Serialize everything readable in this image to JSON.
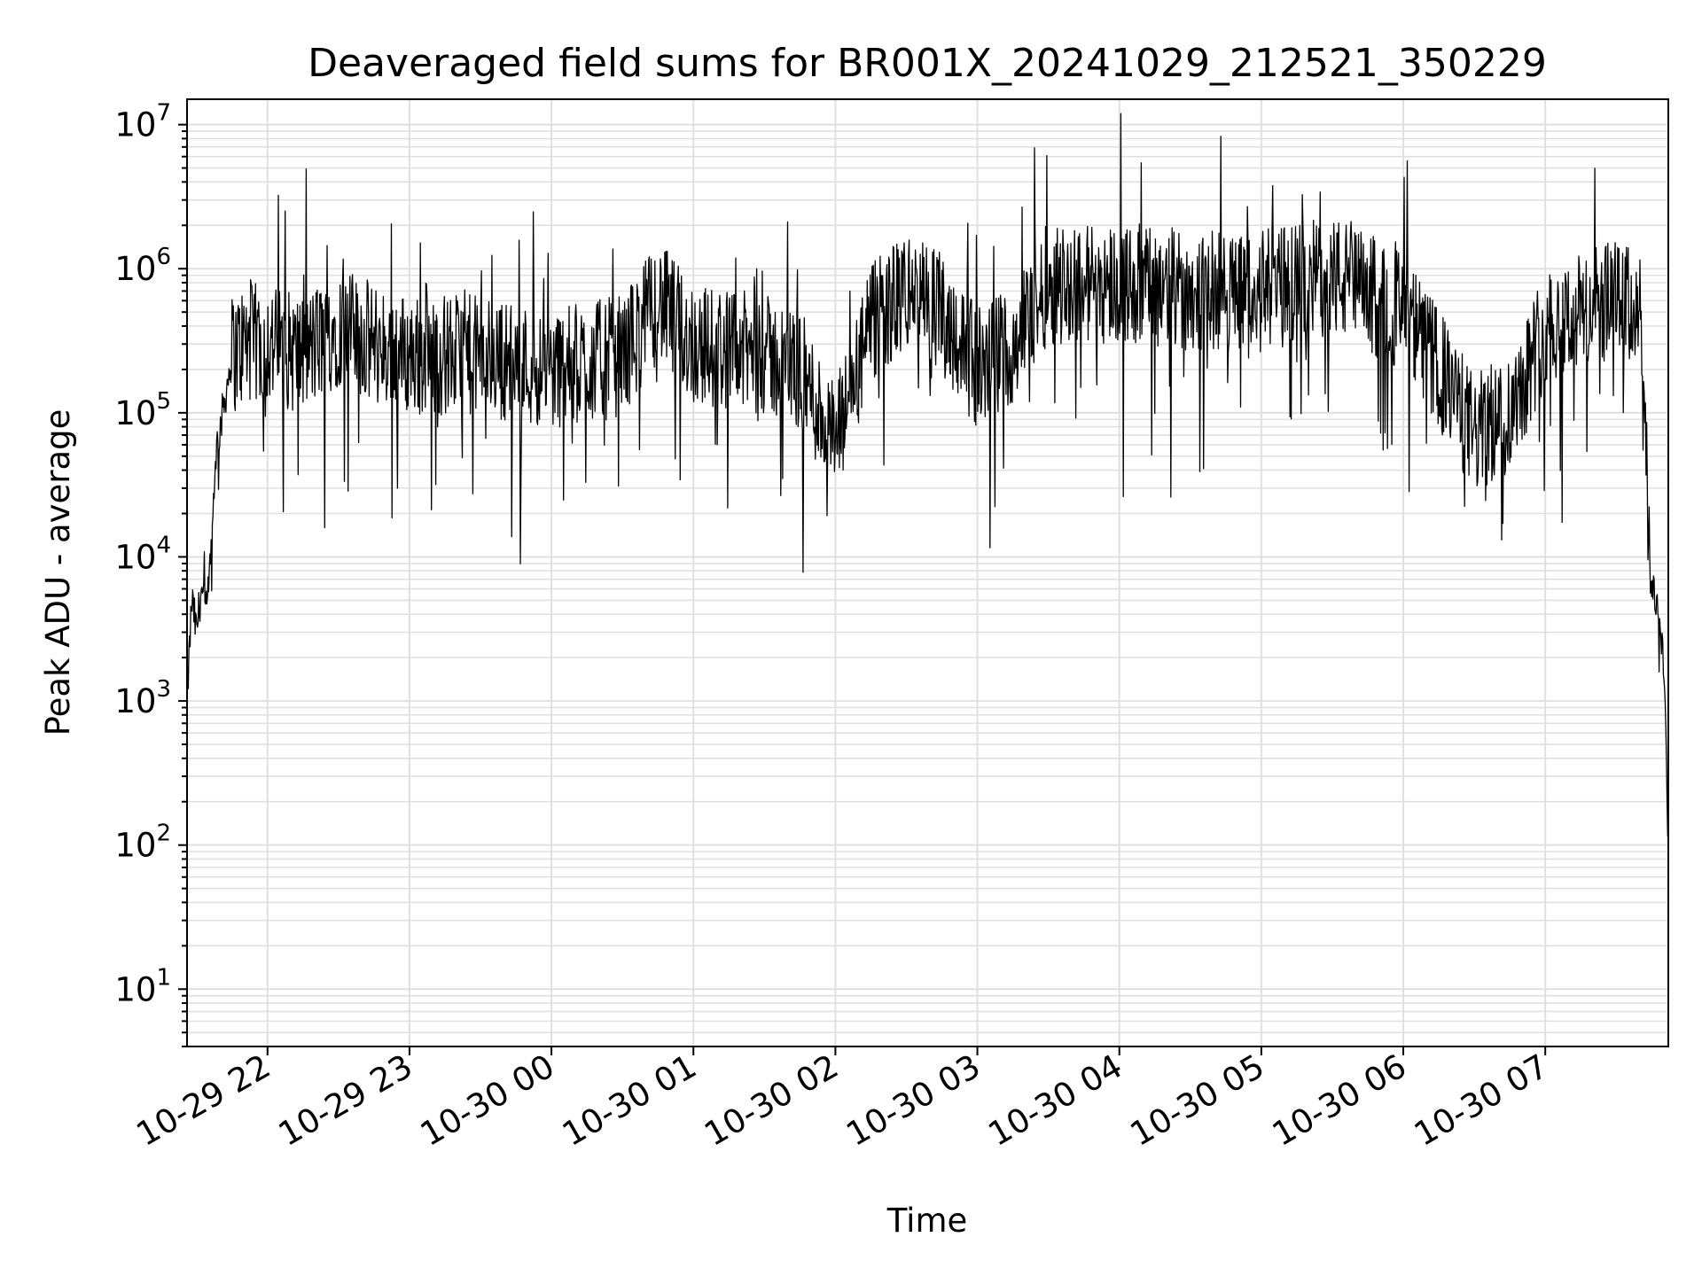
{
  "chart_data": {
    "type": "line",
    "title": "Deaveraged field sums for BR001X_20241029_212521_350229",
    "xlabel": "Time",
    "ylabel": "Peak ADU - average",
    "x_ticks": [
      "10-29 22",
      "10-29 23",
      "10-30 00",
      "10-30 01",
      "10-30 02",
      "10-30 03",
      "10-30 04",
      "10-30 05",
      "10-30 06",
      "10-30 07"
    ],
    "y_tick_base": "10",
    "y_tick_exponents": [
      "1",
      "2",
      "3",
      "4",
      "5",
      "6",
      "7"
    ],
    "y_scale": "log",
    "ylim": [
      4,
      15000000
    ],
    "xlim": [
      "2024-10-29 21:26",
      "2024-10-30 07:52"
    ],
    "grid": true,
    "colors": {
      "line": "#000000",
      "grid": "#e0e0e0"
    },
    "series": [
      {
        "x": [
          "2024-10-29 21:26",
          "2024-10-29 21:28",
          "2024-10-29 21:30",
          "2024-10-29 21:32",
          "2024-10-29 21:34",
          "2024-10-29 21:36",
          "2024-10-29 21:38",
          "2024-10-29 21:40",
          "2024-10-29 21:45",
          "2024-10-29 21:50",
          "2024-10-29 22:00",
          "2024-10-29 22:15",
          "2024-10-29 22:30",
          "2024-10-29 22:45",
          "2024-10-29 23:00",
          "2024-10-29 23:30",
          "2024-10-30 00:00",
          "2024-10-30 00:30",
          "2024-10-30 00:45",
          "2024-10-30 01:00",
          "2024-10-30 01:30",
          "2024-10-30 01:45",
          "2024-10-30 02:00",
          "2024-10-30 02:15",
          "2024-10-30 02:30",
          "2024-10-30 02:45",
          "2024-10-30 03:00",
          "2024-10-30 03:15",
          "2024-10-30 03:30",
          "2024-10-30 04:00",
          "2024-10-30 04:30",
          "2024-10-30 05:00",
          "2024-10-30 05:30",
          "2024-10-30 06:00",
          "2024-10-30 06:15",
          "2024-10-30 06:30",
          "2024-10-30 06:45",
          "2024-10-30 07:00",
          "2024-10-30 07:15",
          "2024-10-30 07:30",
          "2024-10-30 07:40",
          "2024-10-30 07:44",
          "2024-10-30 07:48",
          "2024-10-30 07:50",
          "2024-10-30 07:52"
        ],
        "y": [
          1000,
          5000,
          3000,
          6000,
          4000,
          8000,
          50000,
          80000,
          250000,
          300000,
          300000,
          250000,
          400000,
          300000,
          250000,
          250000,
          200000,
          250000,
          600000,
          300000,
          250000,
          200000,
          60000,
          400000,
          700000,
          500000,
          200000,
          300000,
          800000,
          800000,
          700000,
          700000,
          900000,
          500000,
          200000,
          70000,
          100000,
          400000,
          500000,
          600000,
          500000,
          8000,
          4000,
          2000,
          100
        ]
      }
    ]
  }
}
